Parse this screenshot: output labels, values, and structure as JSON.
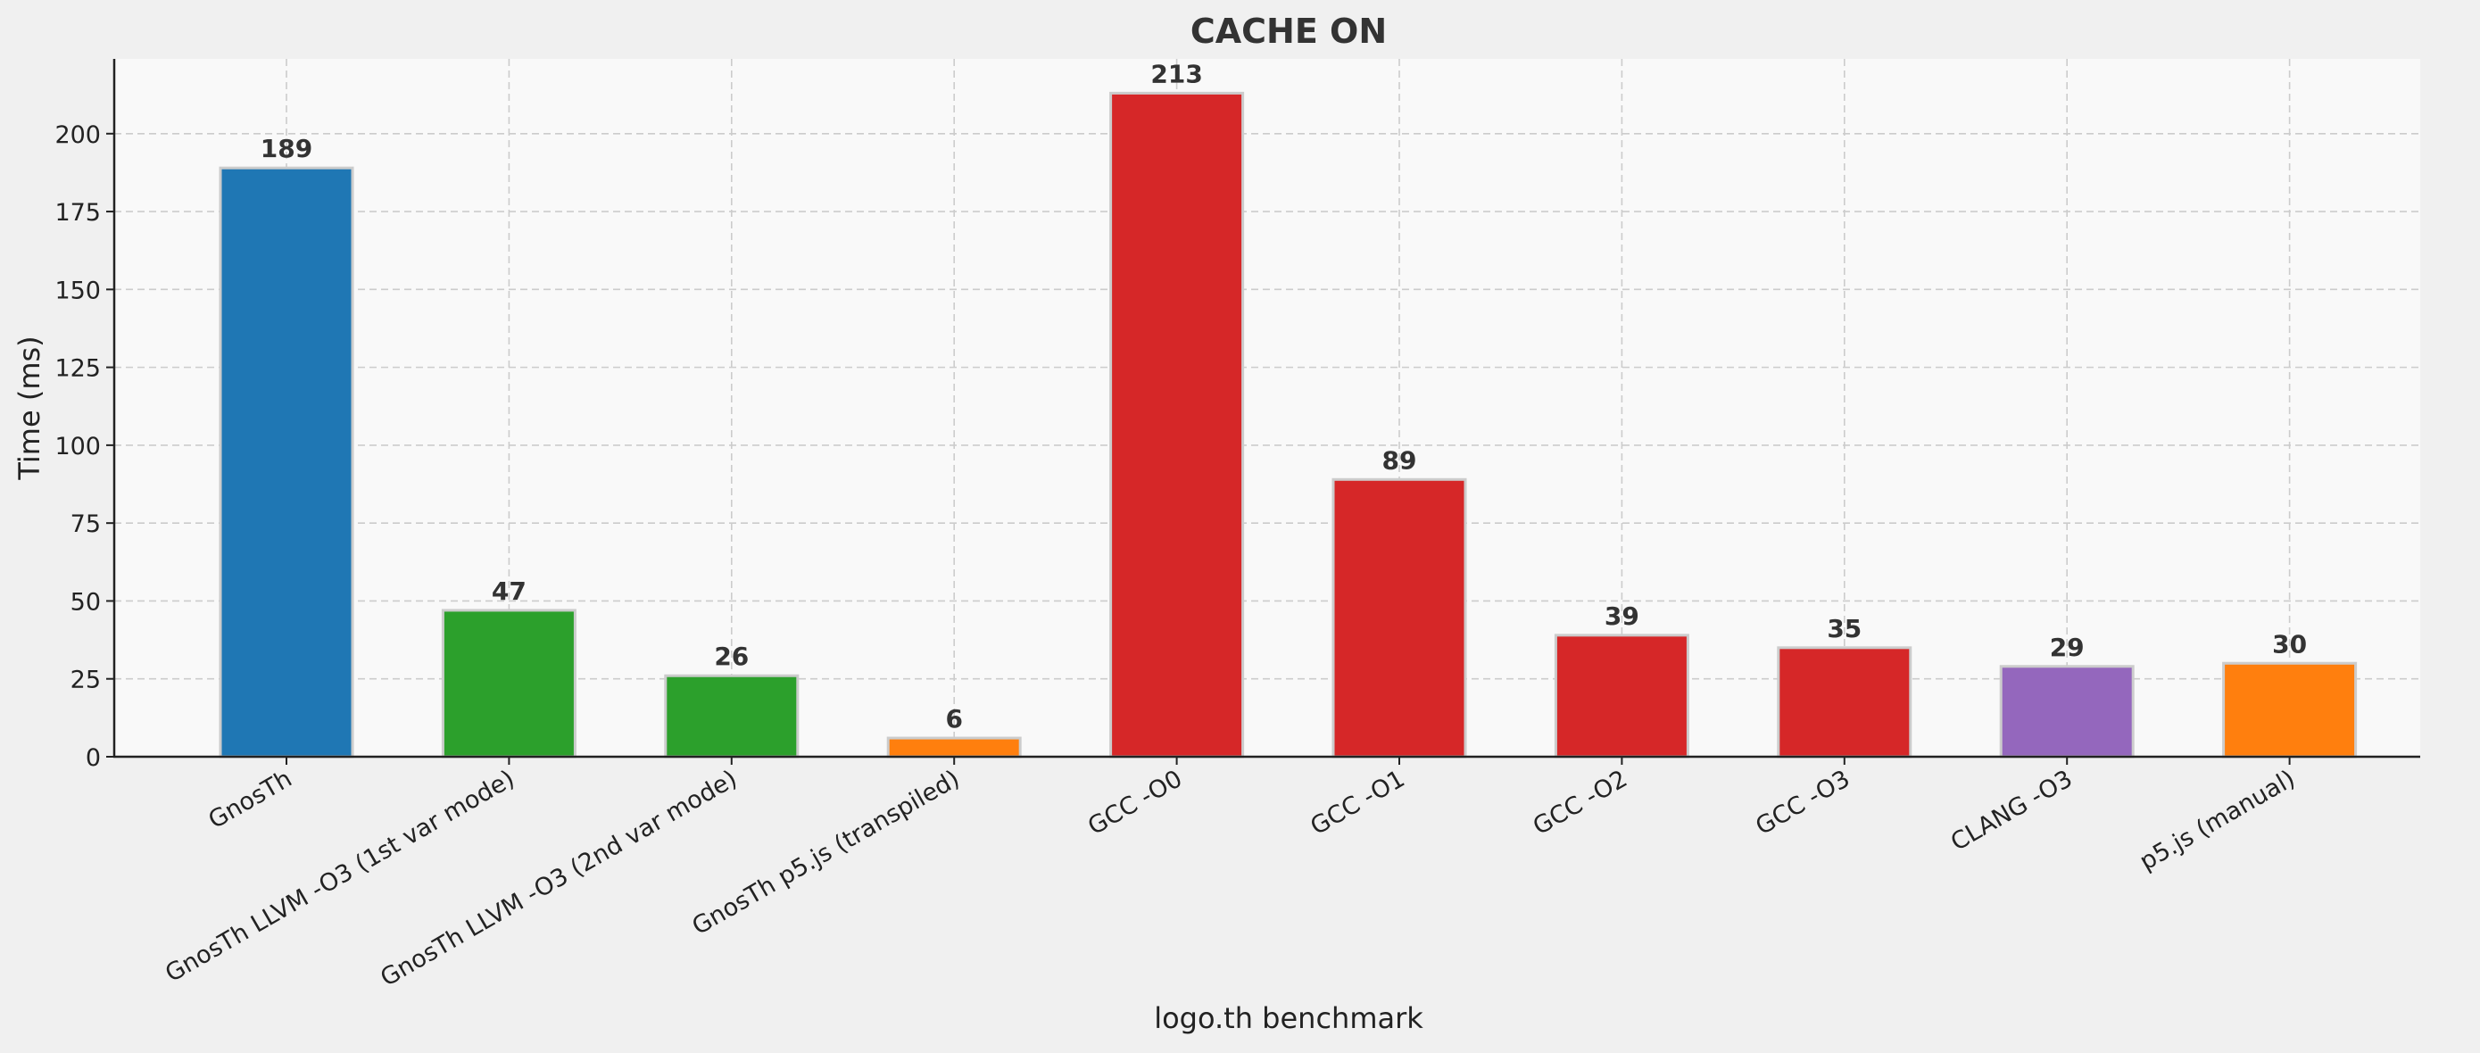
{
  "chart_data": {
    "type": "bar",
    "title": "CACHE ON",
    "xlabel": "logo.th benchmark",
    "ylabel": "Time (ms)",
    "categories": [
      "GnosTh",
      "GnosTh LLVM -O3 (1st var mode)",
      "GnosTh LLVM -O3 (2nd var mode)",
      "GnosTh p5.js (transpiled)",
      "GCC -O0",
      "GCC -O1",
      "GCC -O2",
      "GCC -O3",
      "CLANG -O3",
      "p5.js (manual)"
    ],
    "values": [
      189,
      47,
      26,
      6,
      213,
      89,
      39,
      35,
      29,
      30
    ],
    "data_labels": [
      "189",
      "47",
      "26",
      "6",
      "213",
      "89",
      "39",
      "35",
      "29",
      "30"
    ],
    "colors": [
      "#1f77b4",
      "#2ca02c",
      "#2ca02c",
      "#ff7f0e",
      "#d62728",
      "#d62728",
      "#d62728",
      "#d62728",
      "#9467bd",
      "#ff7f0e"
    ],
    "ylim": [
      0,
      224
    ],
    "yticks": [
      0,
      25,
      50,
      75,
      100,
      125,
      150,
      175,
      200
    ],
    "ytick_labels": [
      "0",
      "25",
      "50",
      "75",
      "100",
      "125",
      "150",
      "175",
      "200"
    ],
    "grid": true,
    "plot_background": "#f9f9f9",
    "page_background": "#f0f0f0"
  }
}
